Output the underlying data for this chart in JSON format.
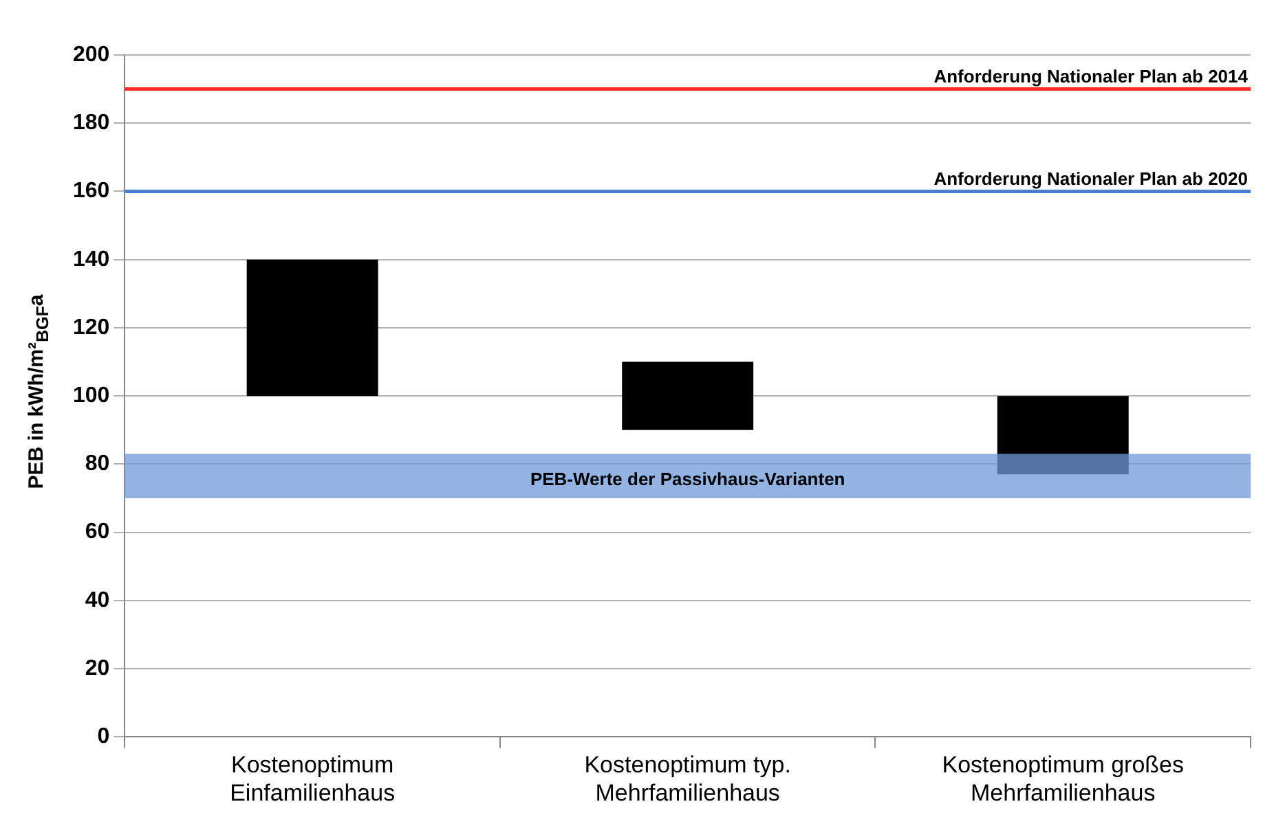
{
  "chart_data": {
    "type": "bar",
    "ylabel": "PEB  in kWh/m²$_{BGF}$a",
    "categories": [
      "Kostenoptimum\nEinfamilienhaus",
      "Kostenoptimum typ.\nMehrfamilienhaus",
      "Kostenoptimum großes\nMehrfamilienhaus"
    ],
    "base": [
      100,
      90,
      77
    ],
    "values": [
      40,
      20,
      23
    ],
    "color": "#000000",
    "ylim": [
      0,
      200
    ],
    "yticks": [
      0,
      20,
      40,
      60,
      80,
      100,
      120,
      140,
      160,
      180,
      200
    ],
    "grid": "y",
    "legend": false,
    "ref_lines": [
      {
        "axis": "y",
        "value": 190,
        "label": "Anforderung Nationaler Plan ab 2014",
        "color": "#ff2a2a"
      },
      {
        "axis": "y",
        "value": 160,
        "label": "Anforderung Nationaler Plan ab 2020",
        "color": "#4a7fd0"
      }
    ],
    "bands": [
      {
        "axis": "y",
        "from": 70,
        "to": 83,
        "label": "PEB-Werte der Passivhaus-Varianten",
        "color": "#6f9ad8"
      }
    ]
  }
}
